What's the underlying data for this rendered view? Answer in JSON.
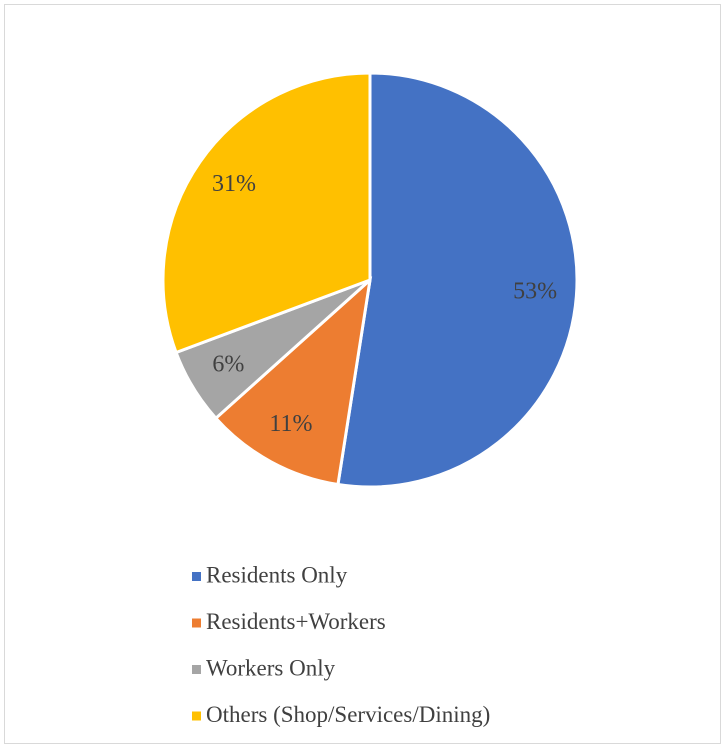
{
  "chart_data": {
    "type": "pie",
    "categories": [
      "Residents Only",
      "Residents+Workers",
      "Workers Only",
      "Others (Shop/Services/Dining)"
    ],
    "values": [
      53,
      11,
      6,
      31
    ],
    "value_labels": [
      "53%",
      "11%",
      "6%",
      "31%"
    ],
    "colors": [
      "#4472c4",
      "#ed7d31",
      "#a5a5a5",
      "#ffc000"
    ],
    "legend": "bottom"
  }
}
